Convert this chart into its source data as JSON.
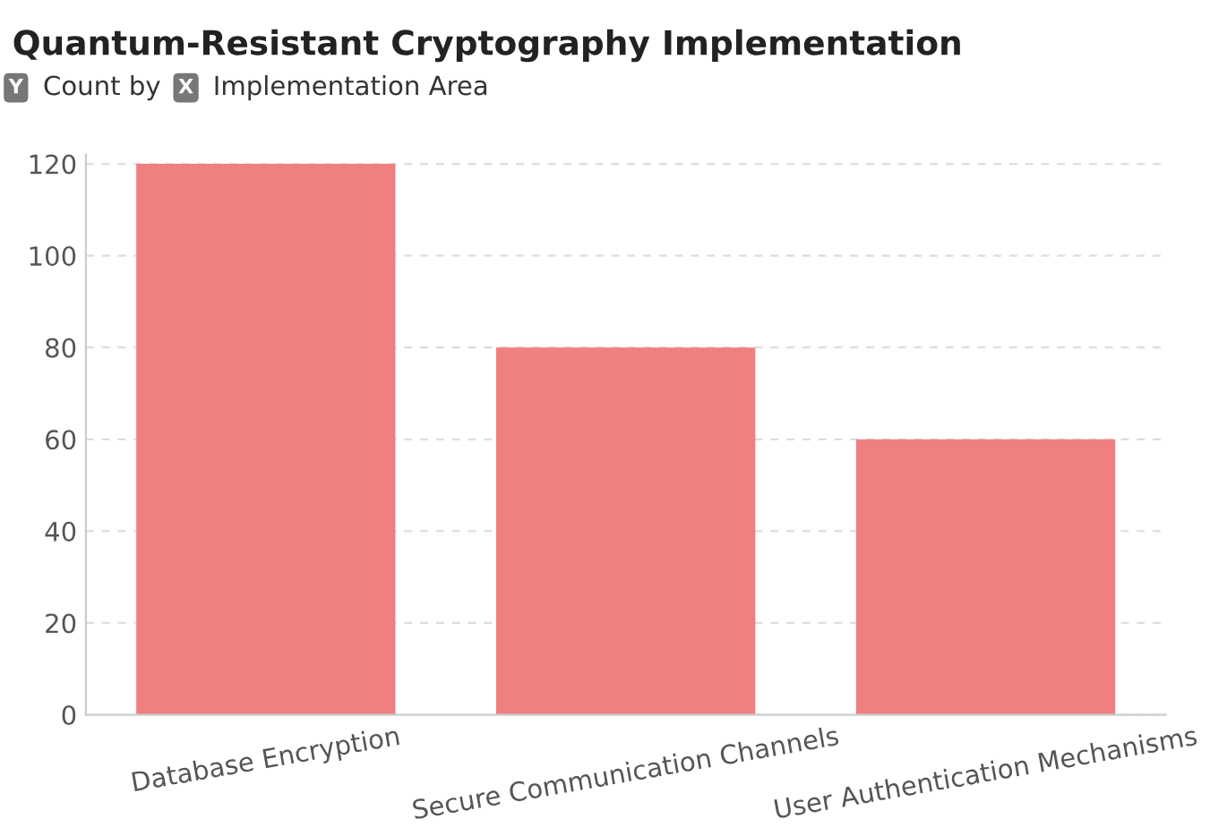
{
  "chart_data": {
    "type": "bar",
    "title": "Quantum-Resistant Cryptography Implementation",
    "ylabel": "Count by",
    "xlabel": "Implementation Area",
    "annotations": [
      "Y",
      "X"
    ],
    "categories": [
      "Database Encryption",
      "Secure Communication Channels",
      "User Authentication Mechanisms"
    ],
    "values": [
      120,
      80,
      60
    ],
    "color": "#f08080",
    "ylim": [
      0,
      122
    ],
    "yticks": [
      0,
      20,
      40,
      60,
      80,
      100,
      120
    ],
    "grid": "y",
    "legend": false
  }
}
